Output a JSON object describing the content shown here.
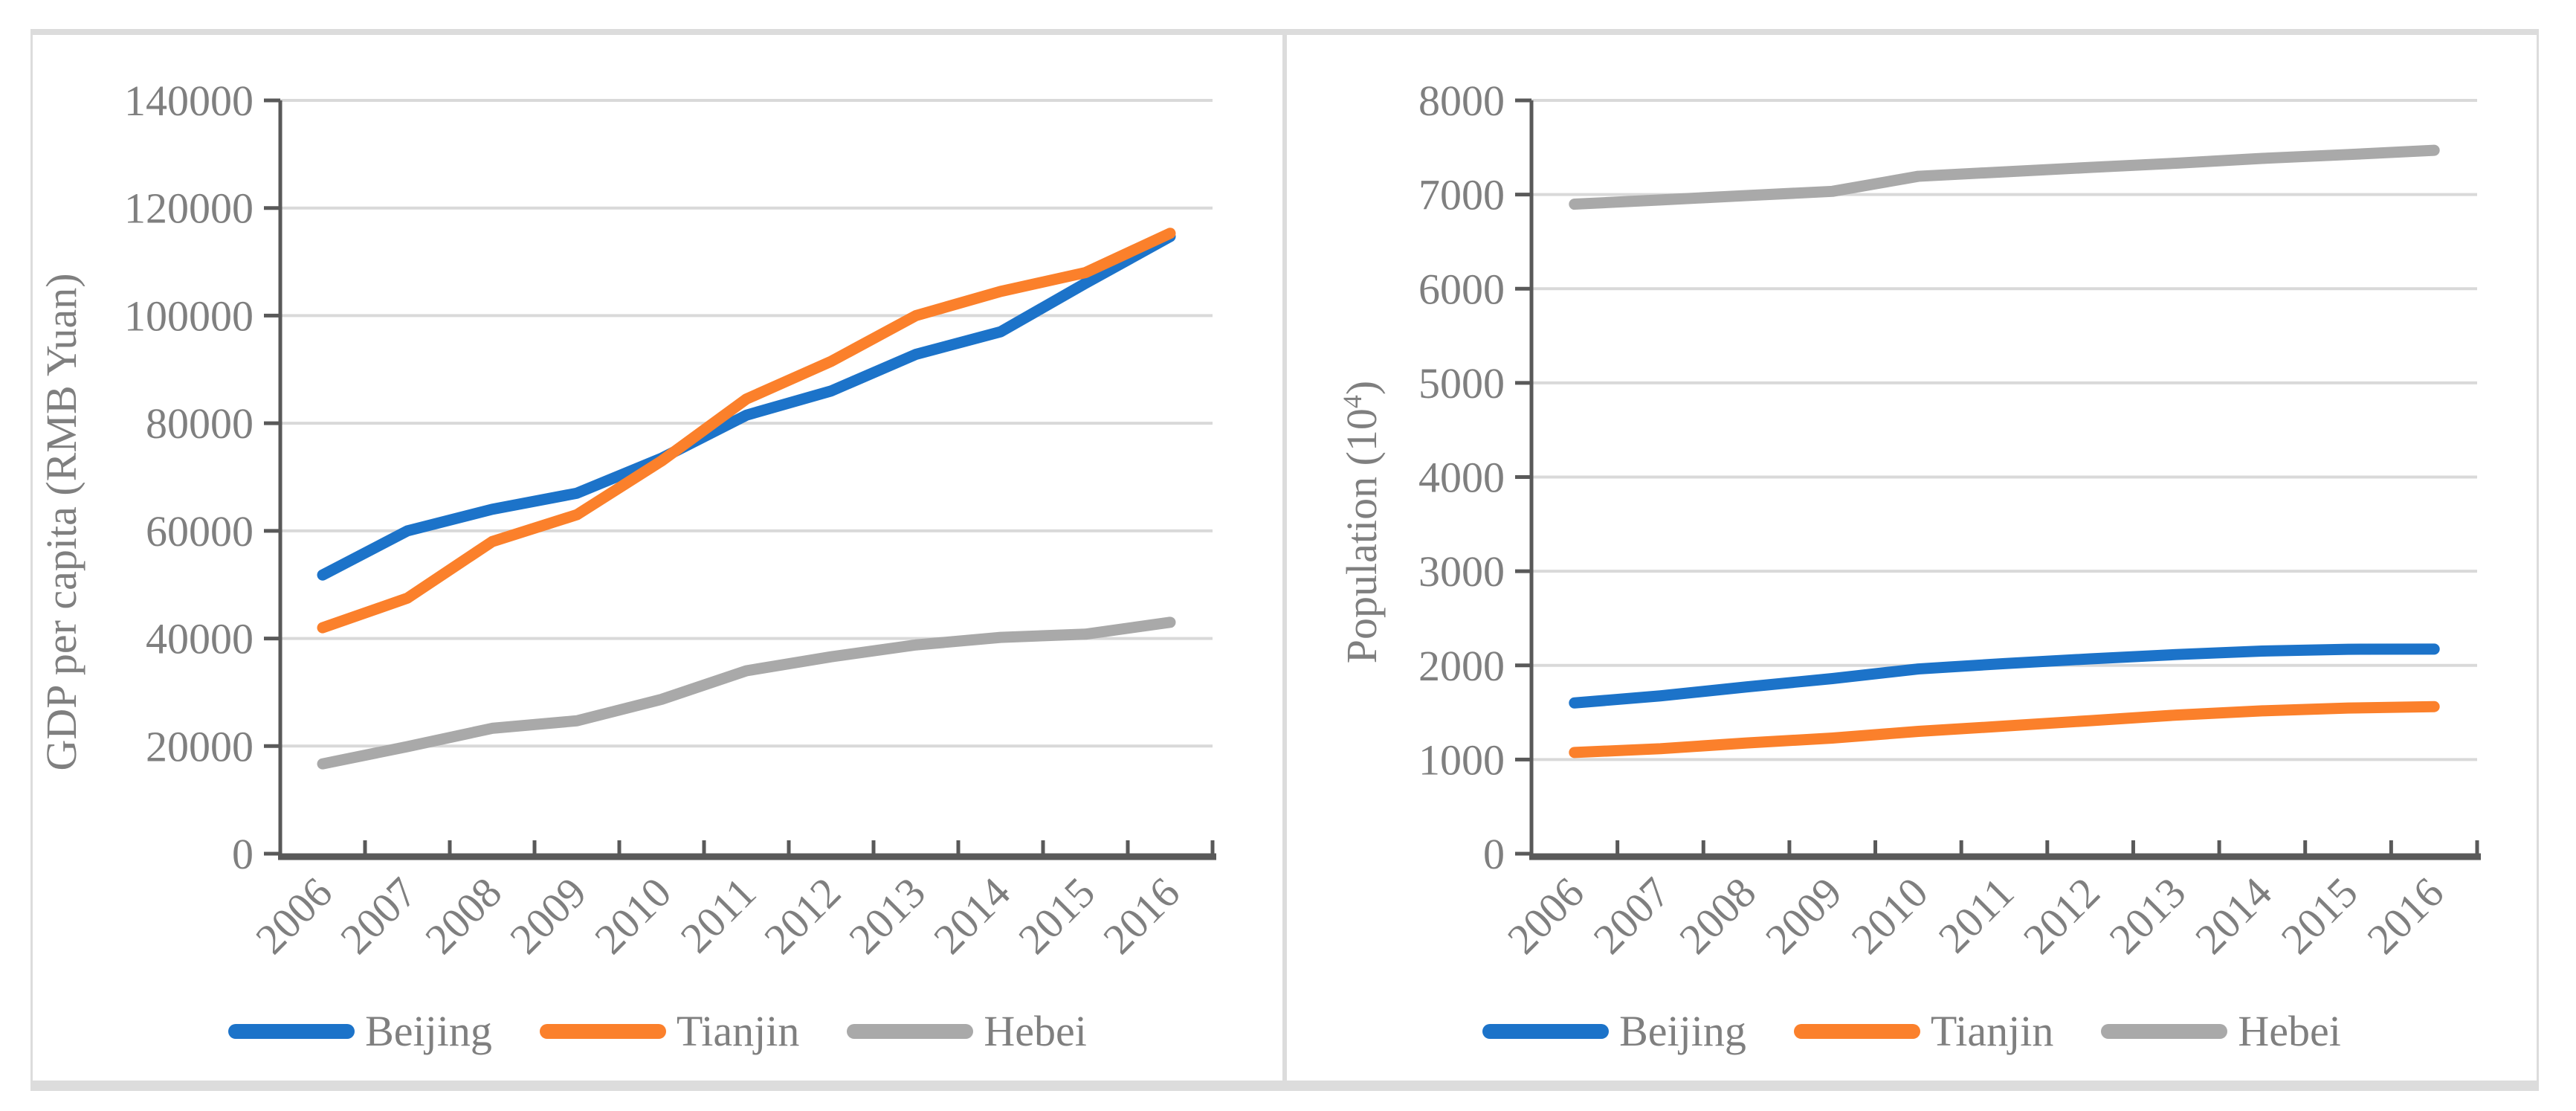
{
  "colors": {
    "background": "#FFFFFF",
    "panel_border": "#DCDCDC",
    "axis_line": "#595959",
    "gridline": "#D9D9D9",
    "tick_text": "#7F7F7F",
    "beijing_blue": "#1C73C9",
    "tianjin_orange": "#FB802B",
    "hebei_gray": "#A9A9A9"
  },
  "chart_data": [
    {
      "type": "line",
      "title": "",
      "xlabel": "",
      "ylabel": "GDP per capita (RMB Yuan)",
      "x": [
        "2006",
        "2007",
        "2008",
        "2009",
        "2010",
        "2011",
        "2012",
        "2013",
        "2014",
        "2015",
        "2016"
      ],
      "series": [
        {
          "name": "Beijing",
          "color": "#1C73C9",
          "values": [
            51800,
            60000,
            64000,
            67000,
            73500,
            81500,
            86000,
            92800,
            97000,
            106000,
            114700
          ]
        },
        {
          "name": "Tianjin",
          "color": "#FB802B",
          "values": [
            42000,
            47500,
            58000,
            63000,
            73000,
            84500,
            91500,
            100000,
            104500,
            108000,
            115300
          ]
        },
        {
          "name": "Hebei",
          "color": "#A9A9A9",
          "values": [
            16700,
            19900,
            23300,
            24700,
            28700,
            34000,
            36600,
            38800,
            40200,
            40800,
            43000
          ]
        }
      ],
      "ylim": [
        0,
        140000
      ],
      "ytick_step": 20000,
      "grid": true,
      "legend_position": "bottom"
    },
    {
      "type": "line",
      "title": "",
      "xlabel": "",
      "ylabel": "Population (10⁴)",
      "ylabel_parts": {
        "pre": "Population (10",
        "sup": "4",
        "post": ")"
      },
      "x": [
        "2006",
        "2007",
        "2008",
        "2009",
        "2010",
        "2011",
        "2012",
        "2013",
        "2014",
        "2015",
        "2016"
      ],
      "series": [
        {
          "name": "Beijing",
          "color": "#1C73C9",
          "values": [
            1601,
            1676,
            1771,
            1860,
            1962,
            2019,
            2069,
            2115,
            2152,
            2171,
            2173
          ]
        },
        {
          "name": "Tianjin",
          "color": "#FB802B",
          "values": [
            1075,
            1115,
            1176,
            1228,
            1299,
            1355,
            1413,
            1472,
            1517,
            1547,
            1562
          ]
        },
        {
          "name": "Hebei",
          "color": "#A9A9A9",
          "values": [
            6898,
            6943,
            6989,
            7034,
            7194,
            7241,
            7288,
            7333,
            7384,
            7425,
            7470
          ]
        }
      ],
      "ylim": [
        0,
        8000
      ],
      "ytick_step": 1000,
      "grid": true,
      "legend_position": "bottom"
    }
  ]
}
